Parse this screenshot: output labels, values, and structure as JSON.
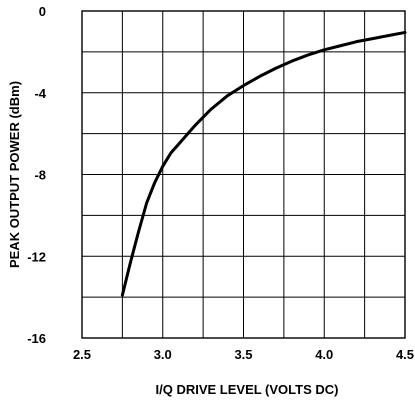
{
  "chart_data": {
    "type": "line",
    "title": "",
    "xlabel": "I/Q DRIVE LEVEL (VOLTS DC)",
    "ylabel": "PEAK OUTPUT POWER (dBm)",
    "xlim": [
      2.5,
      4.5
    ],
    "ylim": [
      -16,
      0
    ],
    "grid": true,
    "x_ticks": [
      2.5,
      3.0,
      3.5,
      4.0,
      4.5
    ],
    "x_tick_labels": [
      "2.5",
      "3.0",
      "3.5",
      "4.0",
      "4.5"
    ],
    "y_ticks": [
      0,
      -4,
      -8,
      -12,
      -16
    ],
    "y_tick_labels": [
      "0",
      "-4",
      "-8",
      "-12",
      "-16"
    ],
    "x_grid_step": 0.25,
    "y_grid_step": 2,
    "series": [
      {
        "color": "#000000",
        "x": [
          2.75,
          2.8,
          2.85,
          2.9,
          2.95,
          3.0,
          3.05,
          3.1,
          3.2,
          3.3,
          3.4,
          3.5,
          3.6,
          3.7,
          3.8,
          3.9,
          4.0,
          4.1,
          4.2,
          4.3,
          4.4,
          4.5
        ],
        "y": [
          -13.9,
          -12.3,
          -10.8,
          -9.4,
          -8.4,
          -7.6,
          -6.95,
          -6.5,
          -5.6,
          -4.8,
          -4.15,
          -3.65,
          -3.2,
          -2.8,
          -2.45,
          -2.15,
          -1.9,
          -1.7,
          -1.5,
          -1.35,
          -1.2,
          -1.05
        ]
      }
    ]
  }
}
